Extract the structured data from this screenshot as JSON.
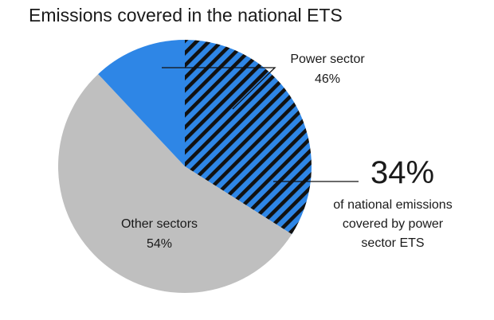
{
  "chart_data": {
    "type": "pie",
    "title": "Emissions covered in the national ETS",
    "slices": [
      {
        "label": "Power sector",
        "value": 46,
        "value_label": "46%",
        "color": "#2e86e6",
        "pattern": "diagonal-hatch"
      },
      {
        "label": "Other sectors",
        "value": 54,
        "value_label": "54%",
        "color": "#bfbfbf",
        "pattern": "solid"
      }
    ],
    "callout": {
      "value": "34%",
      "text_lines": [
        "of national emissions",
        "covered by power",
        "sector ETS"
      ],
      "value_share_of_total": 34,
      "remaining_power_share": 12
    }
  }
}
